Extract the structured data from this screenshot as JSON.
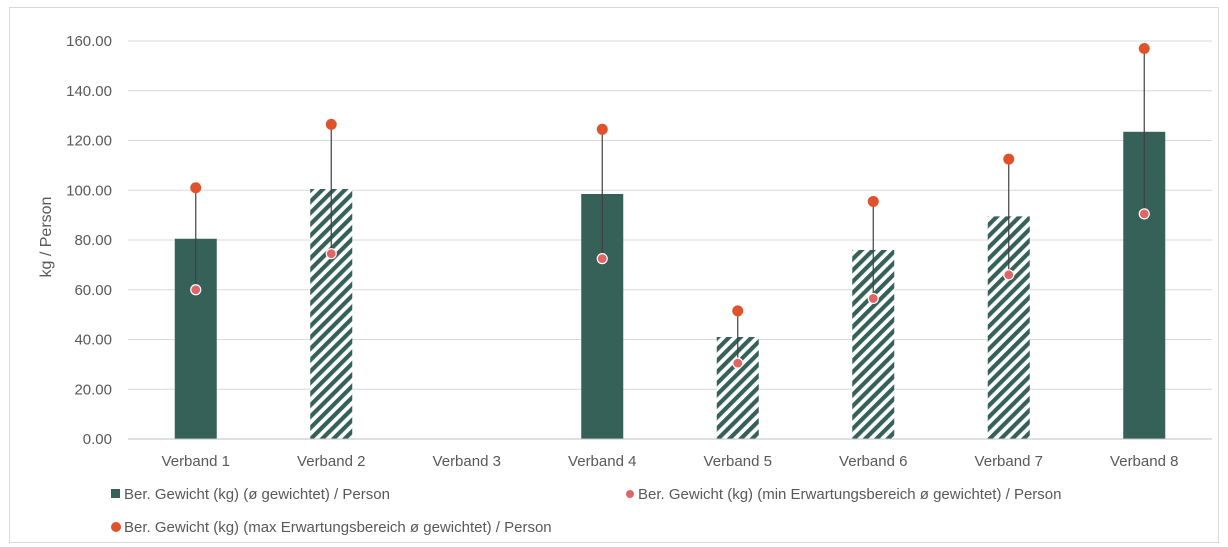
{
  "chart_data": {
    "type": "bar",
    "ylabel": "kg / Person",
    "ylim": [
      0,
      160
    ],
    "yticks": [
      "0.00",
      "20.00",
      "40.00",
      "60.00",
      "80.00",
      "100.00",
      "120.00",
      "140.00",
      "160.00"
    ],
    "categories": [
      "Verband 1",
      "Verband 2",
      "Verband 3",
      "Verband 4",
      "Verband 5",
      "Verband 6",
      "Verband 7",
      "Verband 8"
    ],
    "grid": true,
    "legend_position": "bottom",
    "series": [
      {
        "name": "Ber. Gewicht (kg) (ø gewichtet) / Person",
        "kind": "bar",
        "color": "#356159",
        "values": [
          80.5,
          100.5,
          null,
          98.5,
          41,
          76,
          89.5,
          123.5
        ],
        "hatched": [
          false,
          true,
          false,
          false,
          true,
          true,
          true,
          false
        ]
      },
      {
        "name": "Ber. Gewicht (kg) (min Erwartungsbereich ø gewichtet) / Person",
        "kind": "point",
        "color": "#e06666",
        "values": [
          60,
          74.5,
          null,
          72.5,
          30.5,
          56.5,
          66,
          90.5
        ]
      },
      {
        "name": "Ber. Gewicht (kg) (max Erwartungsbereich ø gewichtet) / Person",
        "kind": "point",
        "color": "#e0522b",
        "values": [
          101,
          126.5,
          null,
          124.5,
          51.5,
          95.5,
          112.5,
          157
        ]
      }
    ]
  }
}
